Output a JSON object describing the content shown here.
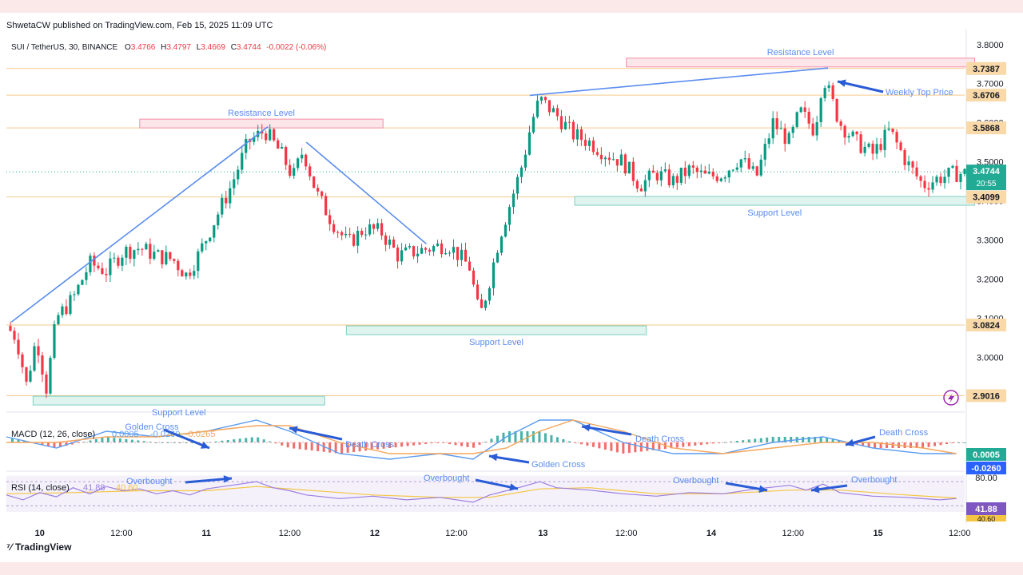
{
  "header": {
    "publisher_line": "ShwetaCW published on TradingView.com, Feb 15, 2025 11:09 UTC"
  },
  "legend": {
    "symbol": "SUI / TetherUS, 30, BINANCE",
    "open_k": "O",
    "open": "3.4766",
    "high_k": "H",
    "high": "3.4797",
    "low_k": "L",
    "low": "3.4669",
    "close_k": "C",
    "close": "3.4744",
    "change": "-0.0022 (-0.06%)"
  },
  "branding": {
    "logo_mark": "⁷⁄",
    "name": "TradingView"
  },
  "colors": {
    "up": "#089981",
    "down": "#f23645",
    "trendline": "#5b8def",
    "support_fill": "#dff3ef",
    "support_border": "#7fd1c2",
    "resistance_fill": "#fde6ea",
    "resistance_border": "#f48ca6",
    "level_line": "#f5c98a",
    "macd": "#5b9cf0",
    "signal": "#f5a65b",
    "rsi": "#9c7ee0",
    "rsi_ma": "#f4c542",
    "arrow": "#2a5cd6"
  },
  "icons": {
    "flash": "flash-icon"
  },
  "chart_data": {
    "type": "candlestick",
    "title": "SUI / TetherUS, 30, BINANCE",
    "x_ticks": [
      "10",
      "12:00",
      "11",
      "12:00",
      "12",
      "12:00",
      "13",
      "12:00",
      "14",
      "12:00",
      "15",
      "12:00"
    ],
    "y_ticks": [
      "3.8000",
      "3.7000",
      "3.6000",
      "3.5000",
      "3.4000",
      "3.3000",
      "3.2000",
      "3.1000",
      "3.0000"
    ],
    "ylim": [
      2.88,
      3.82
    ],
    "last_price": "3.4744",
    "countdown": "20:55",
    "price_levels": [
      {
        "value": 3.7387,
        "label": "3.7387"
      },
      {
        "value": 3.6706,
        "label": "3.6706"
      },
      {
        "value": 3.5868,
        "label": "3.5868"
      },
      {
        "value": 3.4099,
        "label": "3.4099"
      },
      {
        "value": 3.0824,
        "label": "3.0824"
      },
      {
        "value": 2.9016,
        "label": "2.9016"
      }
    ],
    "close_path": [
      [
        0,
        3.08
      ],
      [
        0.6,
        3.05
      ],
      [
        1.2,
        2.93
      ],
      [
        1.8,
        3.05
      ],
      [
        2.4,
        2.92
      ],
      [
        3.0,
        3.1
      ],
      [
        4.0,
        3.15
      ],
      [
        5.0,
        3.24
      ],
      [
        6.0,
        3.22
      ],
      [
        7.0,
        3.27
      ],
      [
        8.0,
        3.28
      ],
      [
        9.0,
        3.26
      ],
      [
        10.0,
        3.25
      ],
      [
        10.8,
        3.21
      ],
      [
        11.5,
        3.26
      ],
      [
        12.5,
        3.35
      ],
      [
        13.5,
        3.44
      ],
      [
        14.5,
        3.55
      ],
      [
        15.5,
        3.58
      ],
      [
        16.5,
        3.52
      ],
      [
        17.2,
        3.46
      ],
      [
        17.8,
        3.53
      ],
      [
        18.6,
        3.42
      ],
      [
        19.5,
        3.35
      ],
      [
        20.5,
        3.29
      ],
      [
        21.5,
        3.33
      ],
      [
        22.5,
        3.32
      ],
      [
        23.5,
        3.26
      ],
      [
        24.5,
        3.27
      ],
      [
        25.5,
        3.28
      ],
      [
        26.5,
        3.29
      ],
      [
        27.8,
        3.23
      ],
      [
        28.4,
        3.1
      ],
      [
        28.9,
        3.18
      ],
      [
        29.6,
        3.31
      ],
      [
        30.5,
        3.43
      ],
      [
        31.0,
        3.5
      ],
      [
        31.5,
        3.6
      ],
      [
        32.0,
        3.66
      ],
      [
        33.0,
        3.62
      ],
      [
        34.0,
        3.57
      ],
      [
        35.0,
        3.55
      ],
      [
        36.0,
        3.52
      ],
      [
        37.0,
        3.5
      ],
      [
        38.0,
        3.44
      ],
      [
        39.0,
        3.47
      ],
      [
        40.0,
        3.45
      ],
      [
        41.0,
        3.48
      ],
      [
        42.0,
        3.46
      ],
      [
        43.0,
        3.47
      ],
      [
        44.0,
        3.51
      ],
      [
        45.0,
        3.46
      ],
      [
        46.0,
        3.6
      ],
      [
        47.0,
        3.55
      ],
      [
        47.6,
        3.63
      ],
      [
        48.5,
        3.58
      ],
      [
        49.0,
        3.72
      ],
      [
        50.0,
        3.6
      ],
      [
        51.0,
        3.55
      ],
      [
        52.0,
        3.52
      ],
      [
        53.0,
        3.58
      ],
      [
        54.0,
        3.5
      ],
      [
        55.0,
        3.44
      ],
      [
        56.0,
        3.46
      ],
      [
        57.0,
        3.47
      ]
    ],
    "candle_count": 240,
    "trendlines": [
      {
        "from": [
          0.3,
          3.09
        ],
        "to": [
          15.7,
          3.59
        ]
      },
      {
        "from": [
          18.0,
          3.55
        ],
        "to": [
          25.2,
          3.29
        ]
      },
      {
        "from": [
          31.4,
          3.67
        ],
        "to": [
          49.3,
          3.74
        ]
      }
    ],
    "zones": [
      {
        "kind": "resistance",
        "label": "Resistance Level",
        "x": [
          8.0,
          22.6
        ],
        "y": 3.599
      },
      {
        "kind": "resistance",
        "label": "Resistance Level",
        "x": [
          37.2,
          58.1
        ],
        "y": 3.755
      },
      {
        "kind": "support",
        "label": "Support Level",
        "x": [
          34.1,
          58.1
        ],
        "y": 3.401
      },
      {
        "kind": "support",
        "label": "Support Level",
        "x": [
          20.4,
          38.4
        ],
        "y": 3.07
      },
      {
        "kind": "support",
        "label": "Support Level",
        "x": [
          1.6,
          19.1
        ],
        "y": 2.89
      }
    ],
    "annotations": {
      "weekly_top": "Weekly Top Price"
    },
    "macd": {
      "title": "MACD (12, 26, close)",
      "values_text": [
        "0.0005",
        "-0.0260",
        "-0.0265"
      ],
      "badge_macd": "0.0005",
      "badge_signal": "-0.0260",
      "labels": [
        "Golden Cross",
        "Death Cross",
        "Death Cross",
        "Golden Cross",
        "Death Cross"
      ],
      "macd_path": [
        [
          0,
          0.01
        ],
        [
          3,
          -0.01
        ],
        [
          6,
          0.02
        ],
        [
          9,
          0.01
        ],
        [
          12,
          0.02
        ],
        [
          15,
          0.04
        ],
        [
          17,
          0.02
        ],
        [
          20,
          -0.02
        ],
        [
          23,
          -0.03
        ],
        [
          26,
          -0.02
        ],
        [
          28,
          -0.03
        ],
        [
          30,
          0.01
        ],
        [
          32,
          0.04
        ],
        [
          34,
          0.04
        ],
        [
          37,
          0.0
        ],
        [
          40,
          -0.02
        ],
        [
          43,
          -0.02
        ],
        [
          46,
          0.0
        ],
        [
          49,
          0.01
        ],
        [
          52,
          -0.01
        ],
        [
          55,
          -0.02
        ],
        [
          57,
          -0.02
        ]
      ],
      "signal_path": [
        [
          0,
          0.0
        ],
        [
          3,
          0.0
        ],
        [
          6,
          0.01
        ],
        [
          9,
          0.01
        ],
        [
          12,
          0.02
        ],
        [
          15,
          0.03
        ],
        [
          17,
          0.03
        ],
        [
          20,
          0.0
        ],
        [
          23,
          -0.02
        ],
        [
          26,
          -0.02
        ],
        [
          28,
          -0.02
        ],
        [
          30,
          -0.01
        ],
        [
          32,
          0.02
        ],
        [
          34,
          0.04
        ],
        [
          37,
          0.02
        ],
        [
          40,
          -0.01
        ],
        [
          43,
          -0.02
        ],
        [
          46,
          -0.01
        ],
        [
          49,
          0.0
        ],
        [
          52,
          0.0
        ],
        [
          55,
          -0.01
        ],
        [
          57,
          -0.02
        ]
      ]
    },
    "rsi": {
      "title": "RSI (14, close)",
      "value_text": "41.88",
      "ma_text": "40.60",
      "upper": "80.00",
      "badge": "41.88",
      "badge_ma": "40.60",
      "labels": [
        "Overbought",
        "Overbought",
        "Overbought",
        "Overbought"
      ],
      "rsi_path": [
        [
          0,
          48
        ],
        [
          1,
          40
        ],
        [
          2,
          52
        ],
        [
          3,
          45
        ],
        [
          4,
          60
        ],
        [
          5,
          50
        ],
        [
          6,
          62
        ],
        [
          7,
          55
        ],
        [
          8,
          58
        ],
        [
          9,
          50
        ],
        [
          10,
          55
        ],
        [
          11,
          48
        ],
        [
          12,
          58
        ],
        [
          14,
          66
        ],
        [
          15,
          70
        ],
        [
          16,
          60
        ],
        [
          17,
          55
        ],
        [
          18,
          48
        ],
        [
          20,
          42
        ],
        [
          22,
          46
        ],
        [
          24,
          40
        ],
        [
          26,
          44
        ],
        [
          28,
          36
        ],
        [
          29,
          48
        ],
        [
          31,
          62
        ],
        [
          32,
          70
        ],
        [
          33,
          60
        ],
        [
          35,
          56
        ],
        [
          37,
          50
        ],
        [
          39,
          46
        ],
        [
          41,
          52
        ],
        [
          43,
          50
        ],
        [
          45,
          58
        ],
        [
          47,
          64
        ],
        [
          48,
          56
        ],
        [
          49,
          66
        ],
        [
          50,
          52
        ],
        [
          52,
          46
        ],
        [
          54,
          44
        ],
        [
          56,
          40
        ],
        [
          57,
          42
        ]
      ],
      "ma_path": [
        [
          0,
          50
        ],
        [
          4,
          52
        ],
        [
          8,
          55
        ],
        [
          12,
          55
        ],
        [
          15,
          62
        ],
        [
          18,
          56
        ],
        [
          22,
          48
        ],
        [
          26,
          44
        ],
        [
          29,
          44
        ],
        [
          32,
          58
        ],
        [
          35,
          60
        ],
        [
          39,
          50
        ],
        [
          43,
          50
        ],
        [
          47,
          56
        ],
        [
          50,
          56
        ],
        [
          54,
          48
        ],
        [
          57,
          43
        ]
      ]
    }
  }
}
